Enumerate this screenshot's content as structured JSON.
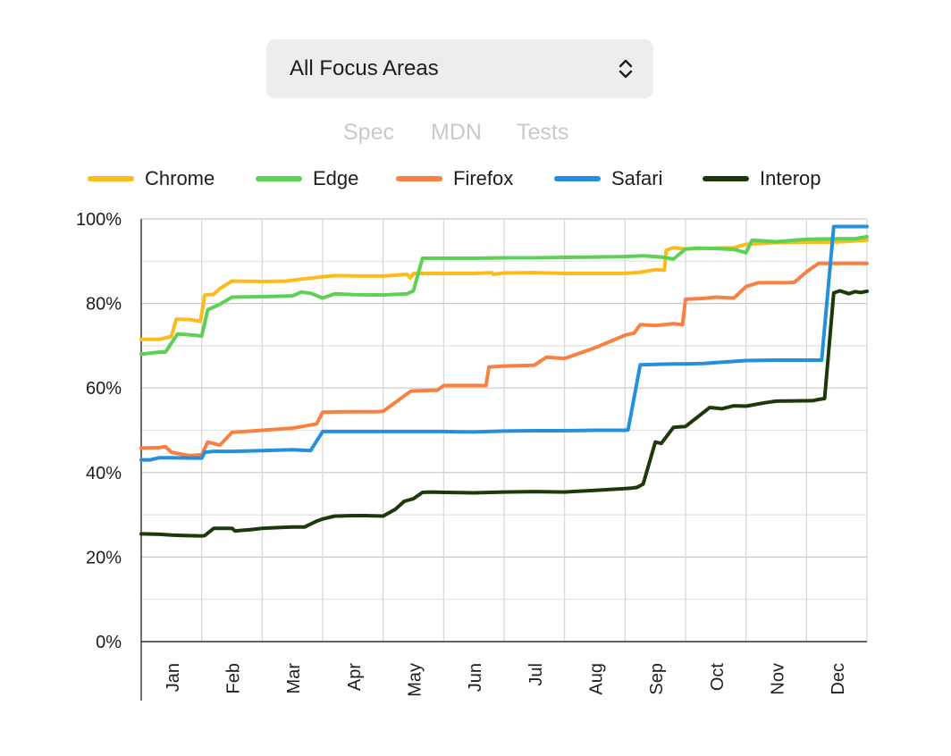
{
  "selector": {
    "value": "All Focus Areas",
    "icon": "chevron-up-down-icon"
  },
  "tabs": [
    {
      "label": "Spec"
    },
    {
      "label": "MDN"
    },
    {
      "label": "Tests"
    }
  ],
  "chart_data": {
    "type": "line",
    "title": "",
    "xlabel": "",
    "ylabel": "",
    "x_ticks": [
      "Jan",
      "Feb",
      "Mar",
      "Apr",
      "May",
      "Jun",
      "Jul",
      "Aug",
      "Sep",
      "Oct",
      "Nov",
      "Dec"
    ],
    "y_ticks": [
      "0%",
      "20%",
      "40%",
      "60%",
      "80%",
      "100%"
    ],
    "x_range": [
      0,
      12
    ],
    "ylim": [
      0,
      100
    ],
    "grid": true,
    "legend_position": "top",
    "series": [
      {
        "name": "Chrome",
        "color": "#fbbc1b",
        "x": [
          0,
          0.3,
          0.5,
          0.58,
          0.8,
          0.98,
          1.05,
          1.2,
          1.3,
          1.5,
          2.0,
          2.4,
          2.8,
          3.2,
          3.6,
          4.0,
          4.4,
          4.45,
          4.5,
          5.0,
          5.5,
          5.8,
          5.82,
          6.0,
          6.5,
          7.0,
          7.5,
          8.0,
          8.25,
          8.5,
          8.65,
          8.68,
          8.8,
          9.0,
          9.5,
          9.8,
          10.0,
          10.5,
          11.0,
          11.4,
          11.6,
          12.0
        ],
        "y": [
          71.5,
          71.5,
          72.2,
          76.3,
          76.2,
          75.8,
          82.0,
          82.2,
          83.5,
          85.3,
          85.2,
          85.3,
          86.0,
          86.6,
          86.5,
          86.5,
          86.9,
          86.0,
          87.1,
          87.1,
          87.1,
          87.3,
          86.9,
          87.2,
          87.3,
          87.1,
          87.1,
          87.1,
          87.4,
          88.0,
          87.9,
          92.6,
          93.2,
          92.9,
          93.1,
          93.2,
          94.0,
          94.4,
          94.5,
          94.5,
          94.6,
          95.0
        ]
      },
      {
        "name": "Edge",
        "color": "#5dd155",
        "x": [
          0,
          0.3,
          0.4,
          0.6,
          0.8,
          1.0,
          1.1,
          1.3,
          1.5,
          2.0,
          2.5,
          2.65,
          2.8,
          3.0,
          3.2,
          3.5,
          4.0,
          4.4,
          4.5,
          4.65,
          5.0,
          5.5,
          6.0,
          6.5,
          7.0,
          7.5,
          8.0,
          8.3,
          8.6,
          8.8,
          9.0,
          9.2,
          9.5,
          9.8,
          10.0,
          10.1,
          10.5,
          11.0,
          11.5,
          11.8,
          12.0
        ],
        "y": [
          68.0,
          68.5,
          68.5,
          72.8,
          72.6,
          72.3,
          78.5,
          79.8,
          81.5,
          81.6,
          81.8,
          82.7,
          82.4,
          81.3,
          82.3,
          82.1,
          82.0,
          82.3,
          83.0,
          90.7,
          90.7,
          90.7,
          90.8,
          90.8,
          90.9,
          91.0,
          91.1,
          91.3,
          91.0,
          90.5,
          92.9,
          93.1,
          93.0,
          92.8,
          92.0,
          95.0,
          94.6,
          95.2,
          95.3,
          95.3,
          95.8
        ]
      },
      {
        "name": "Firefox",
        "color": "#f98040",
        "x": [
          0,
          0.3,
          0.4,
          0.5,
          0.6,
          0.8,
          1.0,
          1.1,
          1.3,
          1.5,
          2.0,
          2.5,
          2.7,
          2.9,
          3.0,
          3.5,
          3.9,
          4.0,
          4.45,
          4.5,
          4.9,
          5.0,
          5.5,
          5.7,
          5.75,
          6.0,
          6.5,
          6.7,
          7.0,
          7.5,
          8.0,
          8.15,
          8.25,
          8.5,
          8.8,
          8.95,
          9.0,
          9.3,
          9.5,
          9.8,
          10.0,
          10.2,
          10.5,
          10.7,
          10.8,
          11.0,
          11.2,
          11.4,
          12.0
        ],
        "y": [
          45.8,
          45.9,
          46.1,
          44.8,
          44.5,
          44.0,
          44.2,
          47.2,
          46.5,
          49.5,
          50.0,
          50.5,
          51.0,
          51.5,
          54.3,
          54.4,
          54.4,
          54.5,
          59.2,
          59.3,
          59.5,
          60.6,
          60.6,
          60.6,
          65.0,
          65.2,
          65.4,
          67.3,
          67.0,
          69.5,
          72.5,
          73.0,
          75.0,
          74.8,
          75.2,
          75.0,
          81.0,
          81.2,
          81.5,
          81.3,
          84.0,
          84.9,
          84.9,
          84.9,
          85.0,
          87.5,
          89.5,
          89.5,
          89.5
        ]
      },
      {
        "name": "Safari",
        "color": "#2490dc",
        "x": [
          0,
          0.15,
          0.3,
          0.5,
          1.0,
          1.05,
          1.2,
          1.5,
          2.0,
          2.5,
          2.8,
          3.0,
          3.5,
          4.0,
          4.5,
          5.0,
          5.5,
          6.0,
          6.5,
          7.0,
          7.5,
          8.0,
          8.05,
          8.25,
          8.5,
          8.8,
          9.0,
          9.3,
          9.5,
          10.0,
          10.5,
          10.7,
          11.0,
          11.2,
          11.25,
          11.45,
          12.0
        ],
        "y": [
          43.0,
          43.0,
          43.5,
          43.5,
          43.4,
          44.8,
          45.0,
          45.0,
          45.2,
          45.4,
          45.2,
          49.7,
          49.7,
          49.7,
          49.7,
          49.7,
          49.6,
          49.8,
          49.9,
          49.9,
          50.0,
          50.0,
          50.1,
          65.5,
          65.6,
          65.7,
          65.7,
          65.8,
          66.0,
          66.5,
          66.6,
          66.6,
          66.6,
          66.6,
          66.6,
          98.2,
          98.2
        ]
      },
      {
        "name": "Interop",
        "color": "#1c3a09",
        "x": [
          0,
          0.3,
          0.5,
          0.7,
          1.0,
          1.05,
          1.2,
          1.5,
          1.55,
          1.8,
          2.0,
          2.3,
          2.5,
          2.7,
          2.9,
          3.0,
          3.2,
          3.5,
          3.7,
          4.0,
          4.2,
          4.35,
          4.5,
          4.65,
          4.8,
          5.0,
          5.5,
          6.0,
          6.5,
          7.0,
          7.5,
          8.0,
          8.1,
          8.2,
          8.3,
          8.5,
          8.6,
          8.8,
          9.0,
          9.4,
          9.6,
          9.8,
          10.0,
          10.3,
          10.5,
          11.1,
          11.2,
          11.3,
          11.45,
          11.55,
          11.7,
          11.8,
          11.9,
          12.0
        ],
        "y": [
          25.5,
          25.4,
          25.2,
          25.1,
          25.0,
          25.1,
          26.8,
          26.8,
          26.2,
          26.5,
          26.8,
          27.0,
          27.1,
          27.1,
          28.5,
          29.0,
          29.7,
          29.8,
          29.8,
          29.7,
          31.3,
          33.2,
          33.8,
          35.3,
          35.4,
          35.3,
          35.2,
          35.4,
          35.5,
          35.4,
          35.8,
          36.2,
          36.3,
          36.5,
          37.3,
          47.2,
          46.9,
          50.7,
          50.9,
          55.4,
          55.1,
          55.8,
          55.7,
          56.5,
          56.9,
          57.0,
          57.3,
          57.5,
          82.5,
          83.0,
          82.3,
          82.8,
          82.6,
          82.9
        ]
      }
    ]
  }
}
